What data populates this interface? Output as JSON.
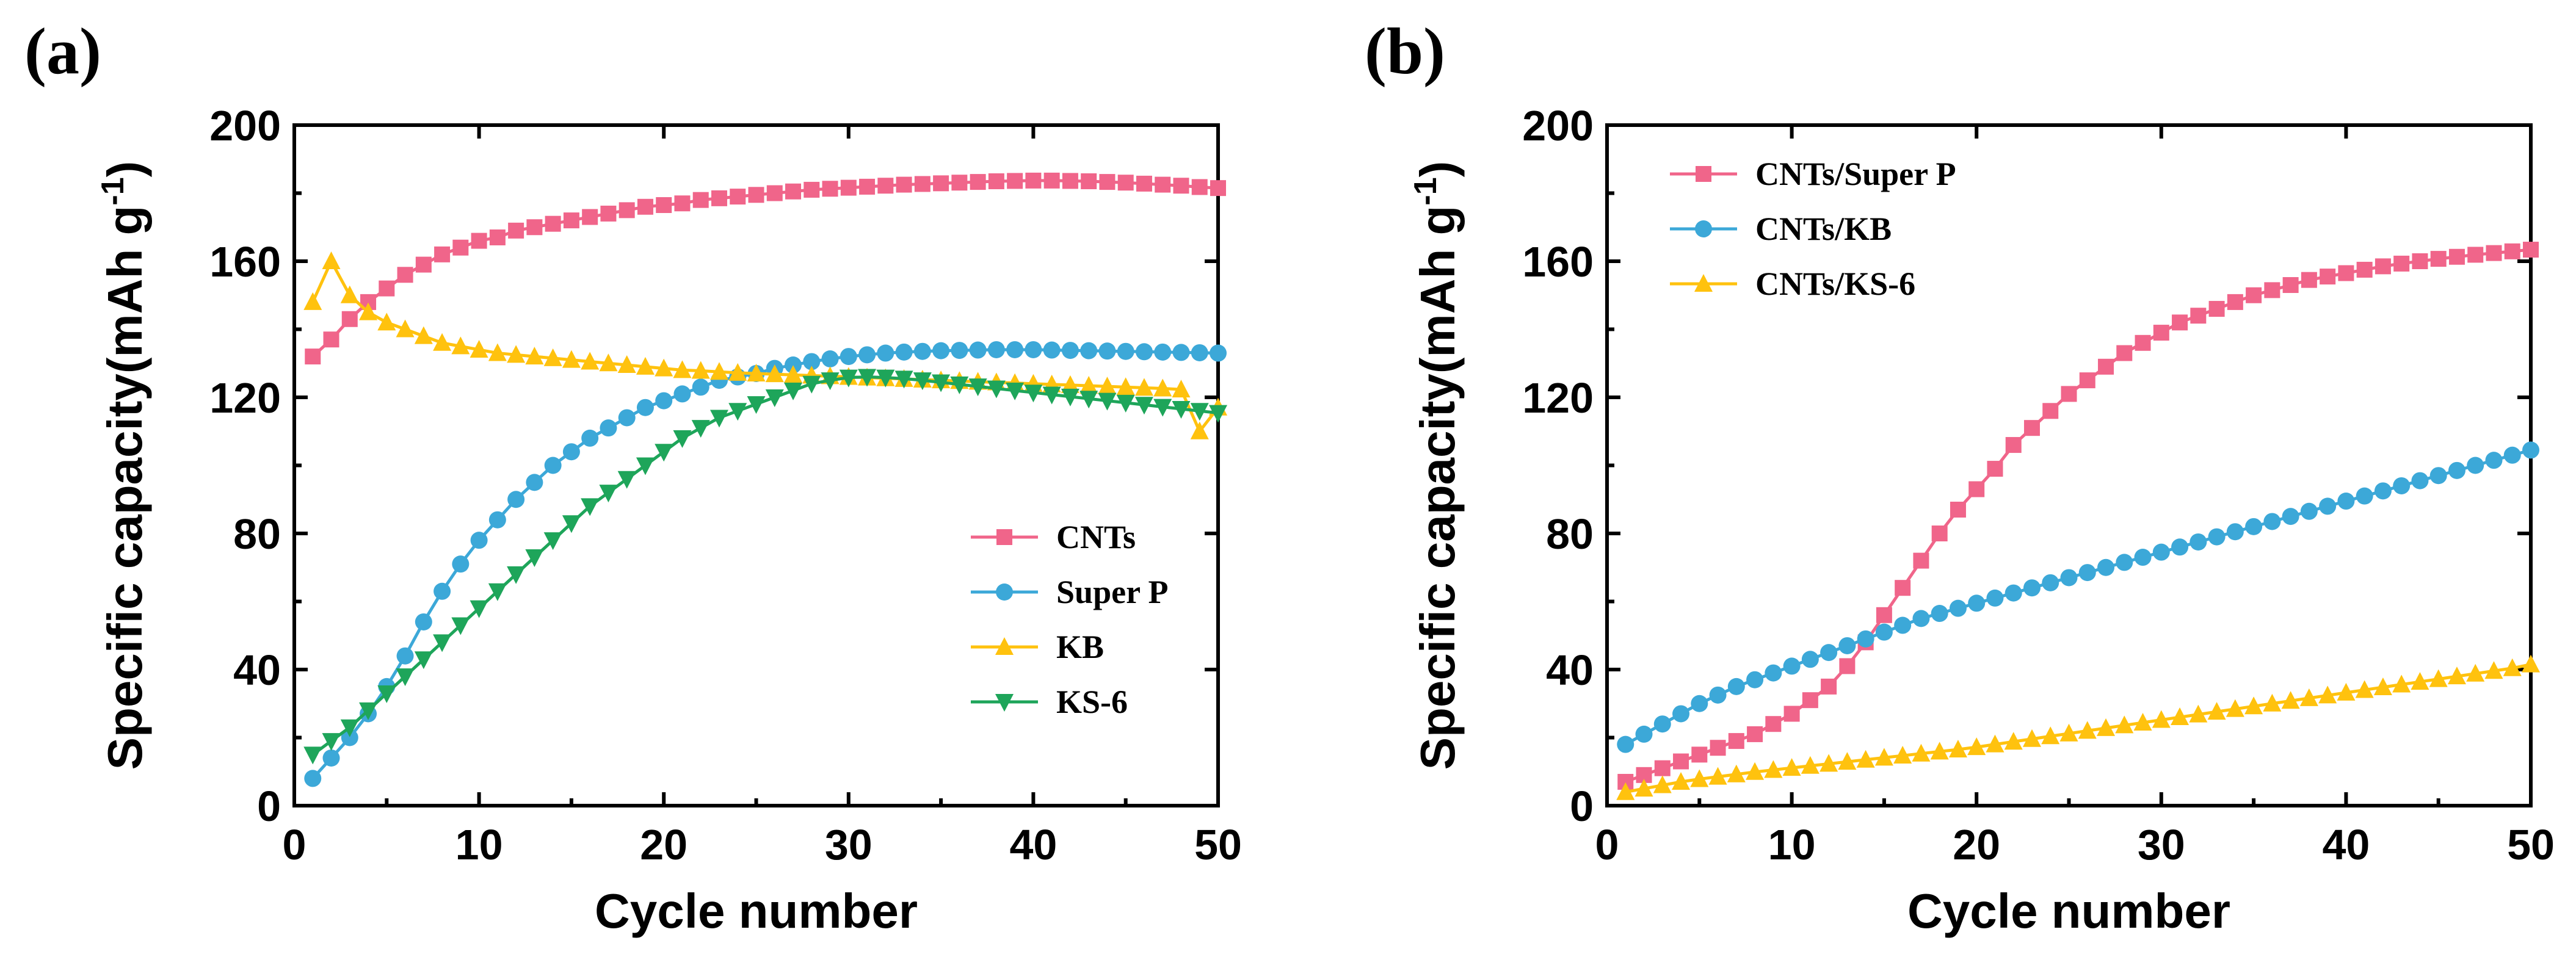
{
  "chart_data": [
    {
      "panel": "(a)",
      "type": "line",
      "title": "",
      "xlabel": "Cycle number",
      "ylabel": "Specific capacity(mAh g",
      "ylabel_sup": "-1",
      "ylabel_close": ")",
      "xlim": [
        0,
        50
      ],
      "ylim": [
        0,
        200
      ],
      "xticks": [
        0,
        10,
        20,
        30,
        40,
        50
      ],
      "yticks": [
        0,
        40,
        80,
        120,
        160,
        200
      ],
      "xtick_labels": [
        "0",
        "10",
        "20",
        "30",
        "40",
        "50"
      ],
      "ytick_labels": [
        "0",
        "40",
        "80",
        "120",
        "160",
        "200"
      ],
      "grid": false,
      "legend_placement": "bottom-right",
      "series": [
        {
          "name": "CNTs",
          "color": "#f0658a",
          "marker": "square",
          "values": [
            132,
            137,
            143,
            148,
            152,
            156,
            159,
            162,
            164,
            166,
            167,
            169,
            170,
            171,
            172,
            173,
            174,
            175,
            176,
            176.5,
            177,
            178,
            178.5,
            179,
            179.5,
            180,
            180.5,
            181,
            181.3,
            181.6,
            181.9,
            182.2,
            182.5,
            182.7,
            182.9,
            183.1,
            183.3,
            183.5,
            183.6,
            183.7,
            183.7,
            183.6,
            183.5,
            183.3,
            183.1,
            182.8,
            182.5,
            182.2,
            181.8,
            181.5
          ]
        },
        {
          "name": "Super P",
          "color": "#3ca8d8",
          "marker": "circle",
          "values": [
            8,
            14,
            20,
            27,
            35,
            44,
            54,
            63,
            71,
            78,
            84,
            90,
            95,
            100,
            104,
            108,
            111,
            114,
            117,
            119,
            121,
            123,
            125,
            126,
            127,
            128.5,
            129.5,
            130.5,
            131.3,
            132,
            132.5,
            133,
            133.3,
            133.5,
            133.7,
            133.8,
            133.9,
            134,
            134,
            134,
            133.9,
            133.8,
            133.7,
            133.6,
            133.5,
            133.4,
            133.3,
            133.2,
            133.1,
            133
          ]
        },
        {
          "name": "KB",
          "color": "#ffc20e",
          "marker": "triangle-up",
          "values": [
            148,
            160,
            150,
            145,
            142,
            140,
            138,
            136,
            135,
            134,
            133,
            132.5,
            132,
            131.5,
            131,
            130.5,
            130,
            129.5,
            129,
            128.5,
            128,
            127.8,
            127.5,
            127.2,
            127,
            126.8,
            126.6,
            126.4,
            126.2,
            126,
            125.8,
            125.6,
            125.4,
            125.2,
            125,
            124.8,
            124.6,
            124.4,
            124.2,
            124,
            123.8,
            123.6,
            123.4,
            123.2,
            123,
            122.8,
            122.6,
            122.3,
            110,
            117
          ]
        },
        {
          "name": "KS-6",
          "color": "#1ea55a",
          "marker": "triangle-down",
          "values": [
            15,
            19,
            23,
            28,
            33,
            38,
            43,
            48,
            53,
            58,
            63,
            68,
            73,
            78,
            83,
            88,
            92,
            96,
            100,
            104,
            108,
            111,
            114,
            116,
            118,
            120,
            122,
            124,
            125,
            125.8,
            126,
            125.8,
            125.5,
            125,
            124.4,
            123.8,
            123.2,
            122.6,
            122,
            121.4,
            120.8,
            120.2,
            119.6,
            119,
            118.4,
            117.8,
            117.2,
            116.6,
            116,
            115.4
          ]
        }
      ]
    },
    {
      "panel": "(b)",
      "type": "line",
      "title": "",
      "xlabel": "Cycle number",
      "ylabel": "Specific capacity(mAh g",
      "ylabel_sup": "-1",
      "ylabel_close": ")",
      "xlim": [
        0,
        50
      ],
      "ylim": [
        0,
        200
      ],
      "xticks": [
        0,
        10,
        20,
        30,
        40,
        50
      ],
      "yticks": [
        0,
        40,
        80,
        120,
        160,
        200
      ],
      "xtick_labels": [
        "0",
        "10",
        "20",
        "30",
        "40",
        "50"
      ],
      "ytick_labels": [
        "0",
        "40",
        "80",
        "120",
        "160",
        "200"
      ],
      "grid": false,
      "legend_placement": "top-left",
      "series": [
        {
          "name": "CNTs/Super P",
          "color": "#f0658a",
          "marker": "square",
          "values": [
            7,
            9,
            11,
            13,
            15,
            17,
            19,
            21,
            24,
            27,
            31,
            35,
            41,
            48,
            56,
            64,
            72,
            80,
            87,
            93,
            99,
            106,
            111,
            116,
            121,
            125,
            129,
            133,
            136,
            139,
            142,
            144,
            146,
            148,
            150,
            151.5,
            153,
            154.5,
            155.5,
            156.5,
            157.5,
            158.5,
            159.3,
            160,
            160.7,
            161.3,
            161.9,
            162.4,
            162.9,
            163.4
          ]
        },
        {
          "name": "CNTs/KB",
          "color": "#3ca8d8",
          "marker": "circle",
          "values": [
            18,
            21,
            24,
            27,
            30,
            32.5,
            35,
            37,
            39,
            41,
            43,
            45,
            47,
            49,
            51,
            53,
            55,
            56.5,
            58,
            59.5,
            61,
            62.5,
            64,
            65.5,
            67,
            68.5,
            70,
            71.5,
            73,
            74.5,
            76,
            77.5,
            79,
            80.5,
            82,
            83.5,
            85,
            86.5,
            88,
            89.5,
            91,
            92.5,
            94,
            95.5,
            97,
            98.5,
            100,
            101.5,
            103,
            104.5
          ]
        },
        {
          "name": "CNTs/KS-6",
          "color": "#ffc20e",
          "marker": "triangle-up",
          "values": [
            4,
            5,
            6,
            7,
            7.8,
            8.5,
            9.2,
            9.9,
            10.5,
            11.1,
            11.7,
            12.3,
            12.9,
            13.5,
            14.1,
            14.7,
            15.3,
            15.9,
            16.5,
            17.2,
            18,
            18.8,
            19.6,
            20.4,
            21.2,
            22,
            22.8,
            23.6,
            24.4,
            25.2,
            26,
            26.8,
            27.6,
            28.4,
            29.2,
            30,
            30.8,
            31.6,
            32.4,
            33.2,
            34,
            34.8,
            35.6,
            36.4,
            37.2,
            38,
            38.8,
            39.6,
            40.4,
            41.5
          ]
        }
      ]
    }
  ]
}
